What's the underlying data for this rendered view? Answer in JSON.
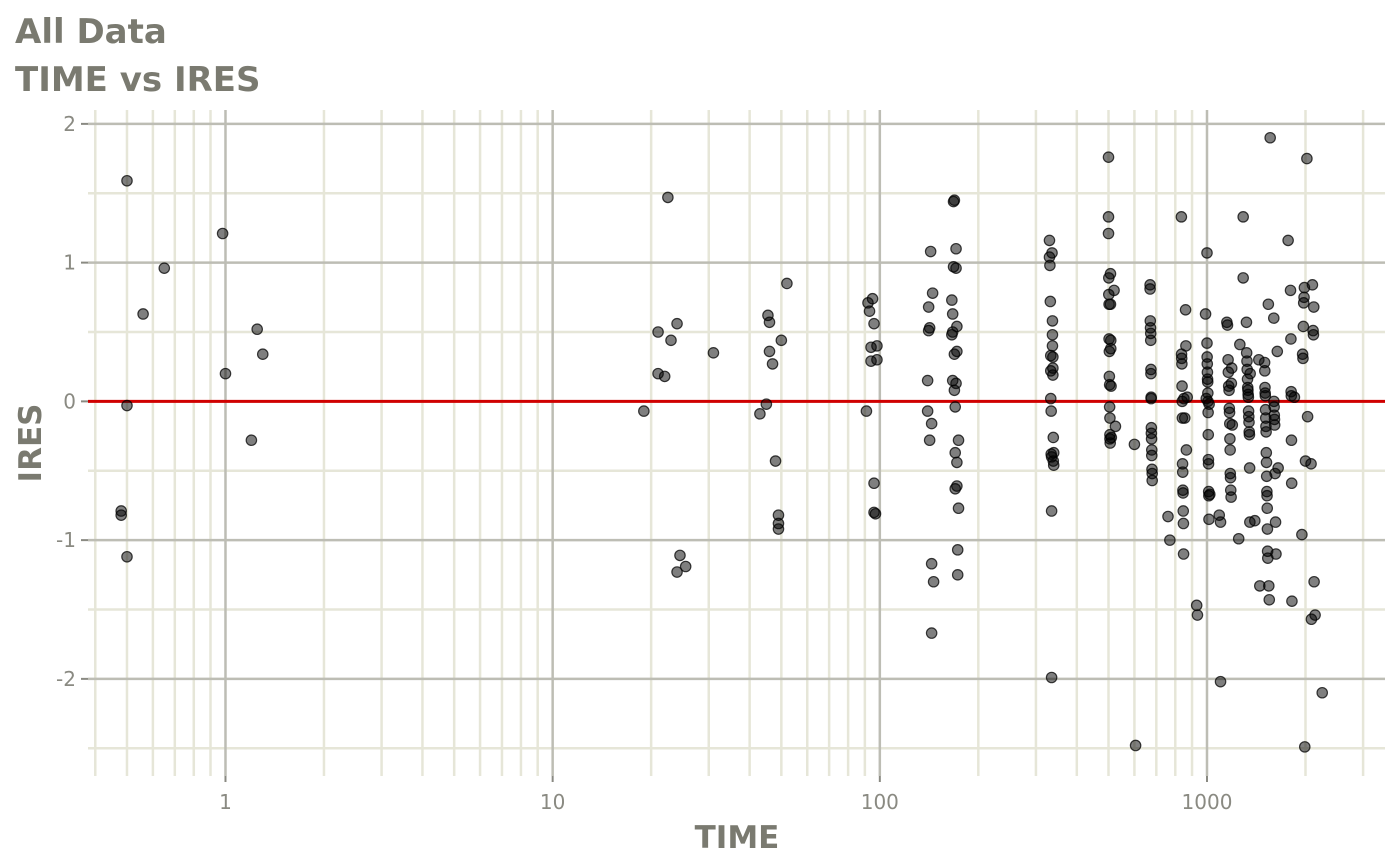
{
  "chart_data": {
    "type": "scatter",
    "title": "All Data",
    "subtitle": "TIME vs IRES",
    "xlabel": "TIME",
    "ylabel": "IRES",
    "x_scale": "log10",
    "xlim": [
      0.38,
      3500
    ],
    "ylim": [
      -2.7,
      2.1
    ],
    "x_ticks": [
      {
        "value": 1,
        "label": "1"
      },
      {
        "value": 10,
        "label": "10"
      },
      {
        "value": 100,
        "label": "100"
      },
      {
        "value": 1000,
        "label": "1000"
      }
    ],
    "y_ticks": [
      {
        "value": 2,
        "label": "2"
      },
      {
        "value": 1,
        "label": "1"
      },
      {
        "value": 0,
        "label": "0"
      },
      {
        "value": -1,
        "label": "-1"
      },
      {
        "value": -2,
        "label": "-2"
      }
    ],
    "grid": true,
    "reference_line": {
      "y": 0,
      "color": "#d00000"
    },
    "point_color": "#000000",
    "point_opacity": 0.5,
    "points": [
      [
        0.5,
        1.59
      ],
      [
        0.5,
        -0.03
      ],
      [
        0.5,
        -1.12
      ],
      [
        0.48,
        -0.79
      ],
      [
        0.48,
        -0.82
      ],
      [
        0.56,
        0.63
      ],
      [
        0.65,
        0.96
      ],
      [
        0.98,
        1.21
      ],
      [
        1.0,
        0.2
      ],
      [
        1.2,
        -0.28
      ],
      [
        1.25,
        0.52
      ],
      [
        1.3,
        0.34
      ],
      [
        19,
        -0.07
      ],
      [
        21,
        0.5
      ],
      [
        21,
        0.2
      ],
      [
        22,
        0.18
      ],
      [
        22.5,
        1.47
      ],
      [
        23,
        0.44
      ],
      [
        24,
        0.56
      ],
      [
        24,
        -1.23
      ],
      [
        24.5,
        -1.11
      ],
      [
        25.5,
        -1.19
      ],
      [
        31,
        0.35
      ],
      [
        43,
        -0.09
      ],
      [
        45,
        -0.02
      ],
      [
        45.5,
        0.62
      ],
      [
        46,
        0.57
      ],
      [
        46,
        0.36
      ],
      [
        47,
        0.27
      ],
      [
        48,
        -0.43
      ],
      [
        49,
        -0.82
      ],
      [
        49,
        -0.88
      ],
      [
        49,
        -0.92
      ],
      [
        50,
        0.44
      ],
      [
        52,
        0.85
      ],
      [
        91,
        -0.07
      ],
      [
        92,
        0.71
      ],
      [
        93,
        0.65
      ],
      [
        94,
        0.39
      ],
      [
        94,
        0.29
      ],
      [
        95,
        0.74
      ],
      [
        96,
        0.56
      ],
      [
        96,
        -0.59
      ],
      [
        96,
        -0.8
      ],
      [
        97,
        -0.81
      ],
      [
        98,
        0.4
      ],
      [
        98,
        0.3
      ],
      [
        140,
        0.15
      ],
      [
        140,
        -0.07
      ],
      [
        141,
        0.51
      ],
      [
        141,
        0.68
      ],
      [
        142,
        0.53
      ],
      [
        142,
        -0.28
      ],
      [
        143,
        1.08
      ],
      [
        144,
        -1.17
      ],
      [
        144,
        -0.16
      ],
      [
        145,
        0.78
      ],
      [
        146,
        -1.3
      ],
      [
        144,
        -1.67
      ],
      [
        166,
        0.48
      ],
      [
        166,
        0.73
      ],
      [
        167,
        0.5
      ],
      [
        167,
        0.63
      ],
      [
        167,
        0.15
      ],
      [
        168,
        1.44
      ],
      [
        168,
        0.97
      ],
      [
        169,
        1.45
      ],
      [
        169,
        0.08
      ],
      [
        169,
        0.34
      ],
      [
        170,
        -0.04
      ],
      [
        170,
        -0.37
      ],
      [
        170,
        -0.63
      ],
      [
        171,
        1.1
      ],
      [
        171,
        0.96
      ],
      [
        171,
        0.13
      ],
      [
        172,
        0.54
      ],
      [
        172,
        0.36
      ],
      [
        172,
        -0.44
      ],
      [
        172,
        -0.61
      ],
      [
        173,
        -1.25
      ],
      [
        173,
        -1.07
      ],
      [
        174,
        -0.77
      ],
      [
        174,
        -0.28
      ],
      [
        330,
        1.16
      ],
      [
        330,
        1.04
      ],
      [
        331,
        0.98
      ],
      [
        332,
        0.72
      ],
      [
        333,
        0.33
      ],
      [
        333,
        0.22
      ],
      [
        333,
        0.02
      ],
      [
        334,
        -0.07
      ],
      [
        334,
        -0.38
      ],
      [
        335,
        -0.4
      ],
      [
        335,
        -0.79
      ],
      [
        335,
        -1.99
      ],
      [
        336,
        1.07
      ],
      [
        337,
        0.58
      ],
      [
        337,
        0.48
      ],
      [
        337,
        0.4
      ],
      [
        338,
        0.32
      ],
      [
        338,
        0.24
      ],
      [
        338,
        0.19
      ],
      [
        339,
        -0.26
      ],
      [
        339,
        -0.43
      ],
      [
        340,
        -0.37
      ],
      [
        340,
        -0.46
      ],
      [
        500,
        1.76
      ],
      [
        500,
        1.33
      ],
      [
        500,
        1.21
      ],
      [
        501,
        0.89
      ],
      [
        501,
        0.77
      ],
      [
        502,
        0.7
      ],
      [
        502,
        0.45
      ],
      [
        503,
        0.36
      ],
      [
        503,
        0.18
      ],
      [
        504,
        0.12
      ],
      [
        504,
        -0.04
      ],
      [
        505,
        -0.12
      ],
      [
        505,
        -0.24
      ],
      [
        505,
        -0.27
      ],
      [
        506,
        -0.3
      ],
      [
        507,
        0.92
      ],
      [
        507,
        0.7
      ],
      [
        508,
        0.44
      ],
      [
        508,
        0.38
      ],
      [
        509,
        0.11
      ],
      [
        510,
        -0.26
      ],
      [
        520,
        0.8
      ],
      [
        525,
        -0.18
      ],
      [
        600,
        -0.31
      ],
      [
        605,
        -2.48
      ],
      [
        670,
        0.84
      ],
      [
        670,
        0.81
      ],
      [
        671,
        0.58
      ],
      [
        672,
        0.53
      ],
      [
        673,
        0.49
      ],
      [
        673,
        0.44
      ],
      [
        674,
        0.23
      ],
      [
        674,
        0.2
      ],
      [
        675,
        0.03
      ],
      [
        675,
        0.02
      ],
      [
        676,
        -0.19
      ],
      [
        676,
        -0.23
      ],
      [
        677,
        -0.27
      ],
      [
        678,
        -0.35
      ],
      [
        678,
        -0.39
      ],
      [
        679,
        -0.49
      ],
      [
        680,
        -0.52
      ],
      [
        680,
        -0.57
      ],
      [
        760,
        -0.83
      ],
      [
        770,
        -1.0
      ],
      [
        835,
        1.33
      ],
      [
        836,
        0.34
      ],
      [
        837,
        0.31
      ],
      [
        838,
        0.27
      ],
      [
        839,
        0.11
      ],
      [
        840,
        0.0
      ],
      [
        841,
        -0.12
      ],
      [
        842,
        -0.45
      ],
      [
        843,
        -0.51
      ],
      [
        844,
        -0.64
      ],
      [
        845,
        -0.66
      ],
      [
        846,
        -0.79
      ],
      [
        847,
        -0.88
      ],
      [
        848,
        -1.1
      ],
      [
        850,
        0.02
      ],
      [
        855,
        -0.12
      ],
      [
        860,
        0.66
      ],
      [
        862,
        0.4
      ],
      [
        865,
        -0.35
      ],
      [
        870,
        0.03
      ],
      [
        930,
        -1.47
      ],
      [
        935,
        -1.54
      ],
      [
        990,
        0.63
      ],
      [
        995,
        0.02
      ],
      [
        1000,
        1.07
      ],
      [
        1000,
        0.42
      ],
      [
        1001,
        0.32
      ],
      [
        1002,
        0.27
      ],
      [
        1003,
        0.21
      ],
      [
        1004,
        0.16
      ],
      [
        1005,
        0.14
      ],
      [
        1006,
        0.06
      ],
      [
        1007,
        0.0
      ],
      [
        1008,
        -0.08
      ],
      [
        1009,
        -0.24
      ],
      [
        1010,
        -0.42
      ],
      [
        1011,
        -0.45
      ],
      [
        1012,
        -0.65
      ],
      [
        1013,
        -0.68
      ],
      [
        1014,
        -0.85
      ],
      [
        1015,
        -0.02
      ],
      [
        1020,
        -0.67
      ],
      [
        1090,
        -0.82
      ],
      [
        1100,
        -0.87
      ],
      [
        1100,
        -2.02
      ],
      [
        1150,
        0.57
      ],
      [
        1155,
        0.55
      ],
      [
        1160,
        0.3
      ],
      [
        1162,
        0.21
      ],
      [
        1165,
        0.11
      ],
      [
        1168,
        0.08
      ],
      [
        1170,
        -0.05
      ],
      [
        1172,
        -0.08
      ],
      [
        1174,
        -0.16
      ],
      [
        1175,
        -0.27
      ],
      [
        1177,
        -0.35
      ],
      [
        1178,
        -0.52
      ],
      [
        1180,
        -0.55
      ],
      [
        1182,
        -0.64
      ],
      [
        1185,
        -0.69
      ],
      [
        1187,
        0.13
      ],
      [
        1190,
        0.24
      ],
      [
        1195,
        -0.17
      ],
      [
        1260,
        0.41
      ],
      [
        1250,
        -0.99
      ],
      [
        1290,
        1.33
      ],
      [
        1290,
        0.89
      ],
      [
        1320,
        0.57
      ],
      [
        1322,
        0.35
      ],
      [
        1325,
        0.29
      ],
      [
        1327,
        0.23
      ],
      [
        1330,
        0.16
      ],
      [
        1332,
        0.1
      ],
      [
        1334,
        0.08
      ],
      [
        1336,
        0.05
      ],
      [
        1338,
        0.03
      ],
      [
        1340,
        -0.07
      ],
      [
        1342,
        -0.11
      ],
      [
        1344,
        -0.15
      ],
      [
        1346,
        -0.22
      ],
      [
        1348,
        -0.24
      ],
      [
        1350,
        -0.48
      ],
      [
        1352,
        -0.87
      ],
      [
        1355,
        0.2
      ],
      [
        1400,
        -0.86
      ],
      [
        1440,
        0.3
      ],
      [
        1450,
        -1.33
      ],
      [
        1500,
        0.28
      ],
      [
        1502,
        0.22
      ],
      [
        1504,
        0.1
      ],
      [
        1506,
        0.06
      ],
      [
        1508,
        0.04
      ],
      [
        1510,
        -0.06
      ],
      [
        1512,
        -0.12
      ],
      [
        1514,
        -0.18
      ],
      [
        1516,
        -0.22
      ],
      [
        1518,
        -0.37
      ],
      [
        1520,
        -0.44
      ],
      [
        1522,
        -0.54
      ],
      [
        1524,
        -0.65
      ],
      [
        1526,
        -0.68
      ],
      [
        1528,
        -0.77
      ],
      [
        1530,
        -0.92
      ],
      [
        1532,
        -1.08
      ],
      [
        1534,
        -1.13
      ],
      [
        1540,
        0.7
      ],
      [
        1545,
        -1.33
      ],
      [
        1550,
        -1.43
      ],
      [
        1560,
        1.9
      ],
      [
        1600,
        0.6
      ],
      [
        1602,
        0.0
      ],
      [
        1604,
        -0.04
      ],
      [
        1606,
        -0.1
      ],
      [
        1608,
        -0.13
      ],
      [
        1610,
        -0.17
      ],
      [
        1615,
        -0.52
      ],
      [
        1620,
        -0.87
      ],
      [
        1625,
        -1.1
      ],
      [
        1640,
        0.36
      ],
      [
        1650,
        -0.48
      ],
      [
        1770,
        1.16
      ],
      [
        1800,
        0.8
      ],
      [
        1805,
        0.45
      ],
      [
        1808,
        0.07
      ],
      [
        1810,
        0.04
      ],
      [
        1812,
        -0.28
      ],
      [
        1815,
        -0.59
      ],
      [
        1818,
        -1.44
      ],
      [
        1850,
        0.03
      ],
      [
        1950,
        -0.96
      ],
      [
        1960,
        0.34
      ],
      [
        1965,
        0.31
      ],
      [
        1970,
        0.54
      ],
      [
        1975,
        0.71
      ],
      [
        1980,
        0.75
      ],
      [
        1985,
        0.82
      ],
      [
        1990,
        -2.49
      ],
      [
        2000,
        -0.43
      ],
      [
        2020,
        1.75
      ],
      [
        2030,
        -0.11
      ],
      [
        2080,
        -0.45
      ],
      [
        2085,
        -1.57
      ],
      [
        2100,
        0.84
      ],
      [
        2110,
        0.51
      ],
      [
        2115,
        0.48
      ],
      [
        2120,
        0.68
      ],
      [
        2125,
        -1.3
      ],
      [
        2140,
        -1.54
      ],
      [
        2250,
        -2.1
      ]
    ]
  }
}
